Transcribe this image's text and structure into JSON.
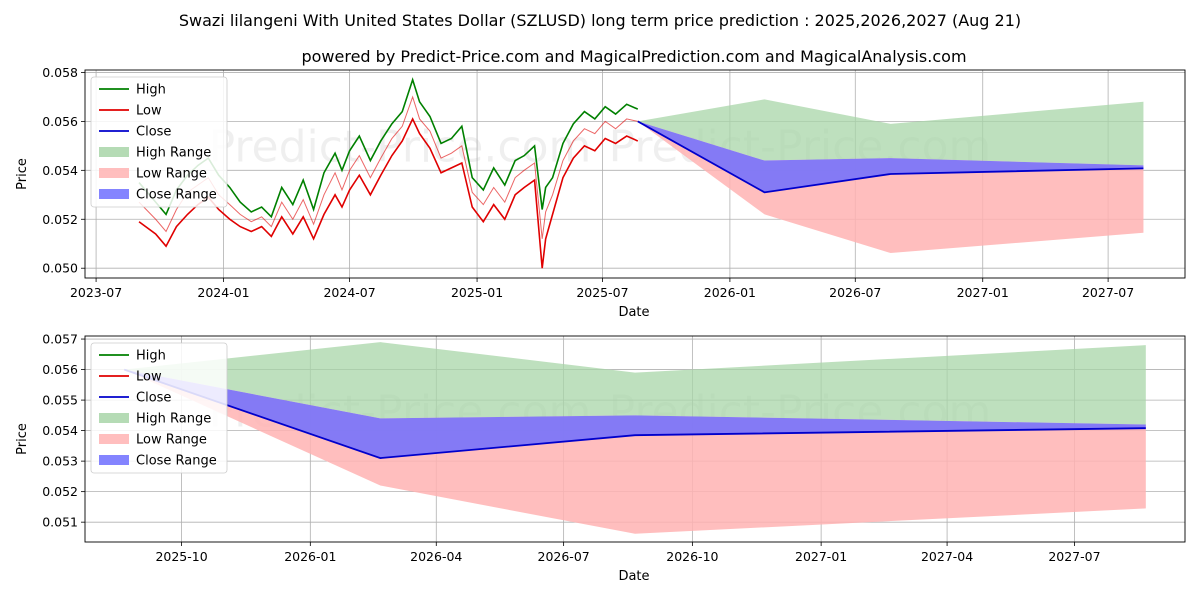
{
  "title": "Swazi lilangeni With United States Dollar (SZLUSD) long term price prediction : 2025,2026,2027 (Aug 21)",
  "subtitle": "powered by Predict-Price.com and MagicalPrediction.com and MagicalAnalysis.com",
  "watermark": "Predict-Price.com",
  "colors": {
    "high": "#008000",
    "low": "#e00000",
    "close": "#0000cc",
    "high_range": "#a8d5a8",
    "low_range": "#ffb3b3",
    "close_range": "#6f6fff"
  },
  "legend": [
    "High",
    "Low",
    "Close",
    "High Range",
    "Low Range",
    "Close Range"
  ],
  "chart_data": [
    {
      "type": "line",
      "panel": "long-term",
      "xlabel": "Date",
      "ylabel": "Price",
      "xlim": [
        "2023-06-15",
        "2027-10-20"
      ],
      "ylim": [
        0.0496,
        0.0581
      ],
      "x_ticks": [
        "2023-07",
        "2024-01",
        "2024-07",
        "2025-01",
        "2025-07",
        "2026-01",
        "2026-07",
        "2027-01",
        "2027-07"
      ],
      "y_ticks": [
        "0.050",
        "0.052",
        "0.054",
        "0.056",
        "0.058"
      ],
      "history": {
        "dates": [
          "2023-09-01",
          "2023-09-25",
          "2023-10-10",
          "2023-10-25",
          "2023-11-10",
          "2023-11-25",
          "2023-12-10",
          "2023-12-25",
          "2024-01-10",
          "2024-01-25",
          "2024-02-10",
          "2024-02-25",
          "2024-03-10",
          "2024-03-25",
          "2024-04-10",
          "2024-04-25",
          "2024-05-10",
          "2024-05-25",
          "2024-06-10",
          "2024-06-20",
          "2024-07-01",
          "2024-07-15",
          "2024-07-31",
          "2024-08-15",
          "2024-08-31",
          "2024-09-15",
          "2024-09-30",
          "2024-10-10",
          "2024-10-25",
          "2024-11-10",
          "2024-11-25",
          "2024-12-10",
          "2024-12-25",
          "2025-01-10",
          "2025-01-25",
          "2025-02-10",
          "2025-02-25",
          "2025-03-10",
          "2025-03-25",
          "2025-04-05",
          "2025-04-10",
          "2025-04-20",
          "2025-05-05",
          "2025-05-20",
          "2025-06-05",
          "2025-06-20",
          "2025-07-05",
          "2025-07-20",
          "2025-08-05",
          "2025-08-21"
        ],
        "high": [
          0.0535,
          0.0527,
          0.0522,
          0.0532,
          0.0538,
          0.0542,
          0.0545,
          0.0538,
          0.0533,
          0.0527,
          0.0523,
          0.0525,
          0.0521,
          0.0533,
          0.0526,
          0.0536,
          0.0524,
          0.0539,
          0.0547,
          0.054,
          0.0548,
          0.0554,
          0.0544,
          0.0552,
          0.0559,
          0.0564,
          0.0577,
          0.0568,
          0.0562,
          0.0551,
          0.0553,
          0.0558,
          0.0537,
          0.0532,
          0.0541,
          0.0534,
          0.0544,
          0.0546,
          0.055,
          0.0524,
          0.0533,
          0.0537,
          0.0551,
          0.0559,
          0.0564,
          0.0561,
          0.0566,
          0.0563,
          0.0567,
          0.0565
        ],
        "low": [
          0.0519,
          0.0514,
          0.0509,
          0.0517,
          0.0522,
          0.0526,
          0.0529,
          0.0524,
          0.052,
          0.0517,
          0.0515,
          0.0517,
          0.0513,
          0.0521,
          0.0514,
          0.0521,
          0.0512,
          0.0522,
          0.053,
          0.0525,
          0.0532,
          0.0538,
          0.053,
          0.0538,
          0.0546,
          0.0552,
          0.0561,
          0.0555,
          0.0549,
          0.0539,
          0.0541,
          0.0543,
          0.0525,
          0.0519,
          0.0526,
          0.052,
          0.053,
          0.0533,
          0.0536,
          0.05,
          0.0512,
          0.0522,
          0.0537,
          0.0545,
          0.055,
          0.0548,
          0.0553,
          0.0551,
          0.0554,
          0.0552
        ],
        "close": [
          0.0527,
          0.052,
          0.0515,
          0.0524,
          0.0531,
          0.0534,
          0.0537,
          0.053,
          0.0526,
          0.0522,
          0.0519,
          0.0521,
          0.0517,
          0.0527,
          0.052,
          0.0528,
          0.0518,
          0.053,
          0.0539,
          0.0532,
          0.054,
          0.0546,
          0.0537,
          0.0545,
          0.0553,
          0.0558,
          0.057,
          0.0561,
          0.0556,
          0.0545,
          0.0547,
          0.055,
          0.0531,
          0.0526,
          0.0533,
          0.0527,
          0.0537,
          0.054,
          0.0543,
          0.0512,
          0.0523,
          0.053,
          0.0544,
          0.0552,
          0.0557,
          0.0555,
          0.056,
          0.0557,
          0.0561,
          0.056
        ]
      },
      "forecast": {
        "dates": [
          "2025-08-21",
          "2026-02-20",
          "2026-08-21",
          "2027-08-21"
        ],
        "close": [
          0.056,
          0.0531,
          0.05385,
          0.05408
        ],
        "high_range": [
          [
            0.056,
            0.056
          ],
          [
            0.0544,
            0.0569
          ],
          [
            0.0545,
            0.0559
          ],
          [
            0.0542,
            0.0568
          ]
        ],
        "low_range": [
          [
            0.056,
            0.056
          ],
          [
            0.0522,
            0.0544
          ],
          [
            0.05062,
            0.0545
          ],
          [
            0.05145,
            0.0542
          ]
        ],
        "close_range": [
          [
            0.056,
            0.056
          ],
          [
            0.0531,
            0.0544
          ],
          [
            0.05385,
            0.0545
          ],
          [
            0.05408,
            0.0542
          ]
        ]
      }
    },
    {
      "type": "line",
      "panel": "forecast-zoom",
      "xlabel": "Date",
      "ylabel": "Price",
      "xlim": [
        "2025-07-24",
        "2027-09-18"
      ],
      "ylim": [
        0.05035,
        0.0571
      ],
      "x_ticks": [
        "2025-10",
        "2026-01",
        "2026-04",
        "2026-07",
        "2026-10",
        "2027-01",
        "2027-04",
        "2027-07"
      ],
      "y_ticks": [
        "0.051",
        "0.052",
        "0.053",
        "0.054",
        "0.055",
        "0.056",
        "0.057"
      ],
      "forecast": {
        "dates": [
          "2025-08-21",
          "2026-02-20",
          "2026-08-21",
          "2027-08-21"
        ],
        "close": [
          0.056,
          0.0531,
          0.05385,
          0.05408
        ],
        "high_range": [
          [
            0.056,
            0.056
          ],
          [
            0.0544,
            0.0569
          ],
          [
            0.0545,
            0.0559
          ],
          [
            0.0542,
            0.0568
          ]
        ],
        "low_range": [
          [
            0.056,
            0.056
          ],
          [
            0.0522,
            0.0544
          ],
          [
            0.05062,
            0.0545
          ],
          [
            0.05145,
            0.0542
          ]
        ],
        "close_range": [
          [
            0.056,
            0.056
          ],
          [
            0.0531,
            0.0544
          ],
          [
            0.05385,
            0.0545
          ],
          [
            0.05408,
            0.0542
          ]
        ]
      }
    }
  ]
}
